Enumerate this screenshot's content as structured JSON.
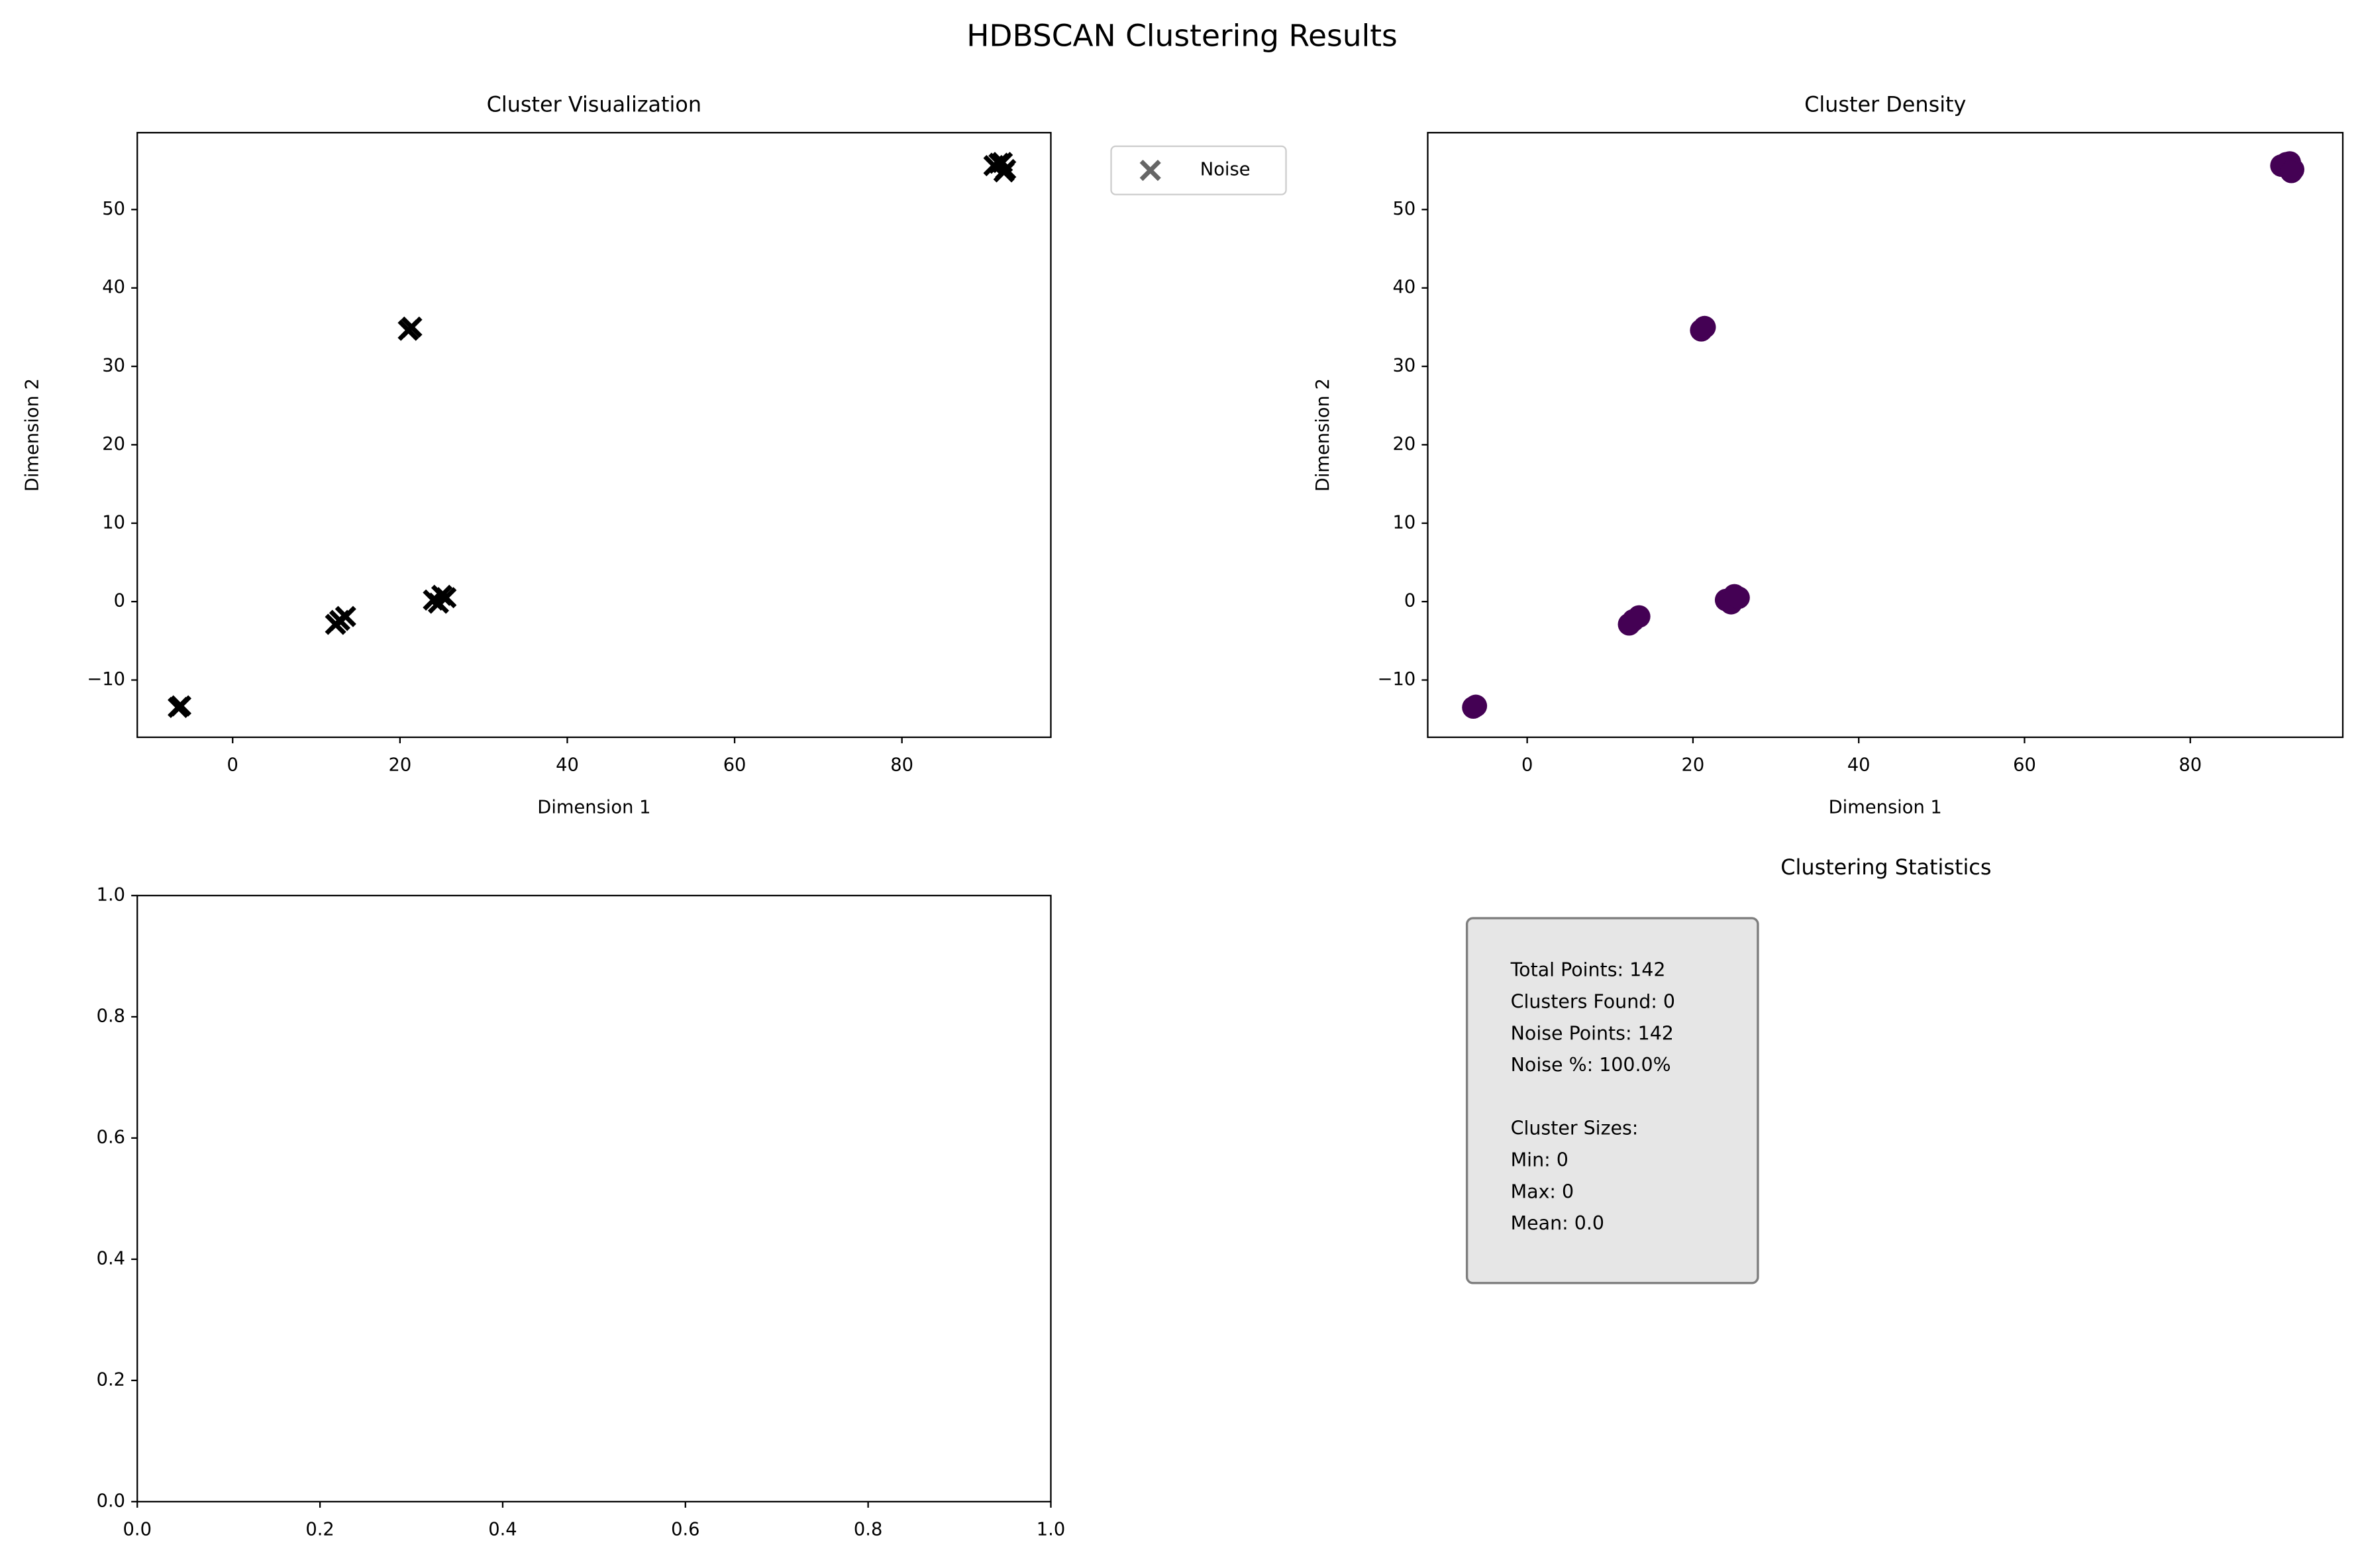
{
  "title": "HDBSCAN Clustering Results",
  "chart_data": [
    {
      "type": "scatter",
      "title": "Cluster Visualization",
      "x_label": "Dimension 1",
      "y_label": "Dimension 2",
      "marker": "x",
      "xlim": [
        -11.4,
        97.8
      ],
      "ylim": [
        -17.3,
        59.8
      ],
      "xticks": [
        0,
        20,
        40,
        60,
        80
      ],
      "yticks": [
        {
          "value": -10,
          "label": "−10"
        },
        0,
        10,
        20,
        30,
        40,
        50
      ],
      "legend": "outside-upper-right",
      "series": [
        {
          "name": "Noise",
          "color": "#000000",
          "x": [
            -6.5,
            -6.2,
            12.3,
            12.8,
            13.5,
            21.0,
            21.4,
            24.0,
            24.6,
            25.0,
            25.5,
            91.0,
            91.6,
            92.0,
            92.4,
            92.2
          ],
          "y": [
            -13.5,
            -13.3,
            -2.9,
            -2.4,
            -1.9,
            34.6,
            35.0,
            0.2,
            -0.2,
            0.8,
            0.5,
            55.6,
            55.9,
            56.0,
            55.1,
            54.8
          ]
        }
      ]
    },
    {
      "type": "scatter",
      "title": "Cluster Density",
      "x_label": "Dimension 1",
      "y_label": "Dimension 2",
      "marker": "o",
      "xlim": [
        -12.0,
        98.4
      ],
      "ylim": [
        -17.3,
        59.8
      ],
      "xticks": [
        0,
        20,
        40,
        60,
        80
      ],
      "yticks": [
        {
          "value": -10,
          "label": "−10"
        },
        0,
        10,
        20,
        30,
        40,
        50
      ],
      "series": [
        {
          "color": "#440154",
          "x": [
            -6.5,
            -6.2,
            12.3,
            12.8,
            13.5,
            21.0,
            21.4,
            24.0,
            24.6,
            25.0,
            25.5,
            91.0,
            91.6,
            92.0,
            92.4,
            92.2
          ],
          "y": [
            -13.5,
            -13.3,
            -2.9,
            -2.4,
            -1.9,
            34.6,
            35.0,
            0.2,
            -0.2,
            0.8,
            0.5,
            55.6,
            55.9,
            56.0,
            55.1,
            54.8
          ]
        }
      ]
    },
    {
      "type": "empty",
      "xlim": [
        0,
        1
      ],
      "ylim": [
        0,
        1
      ],
      "xticks": [
        {
          "value": 0,
          "label": "0.0"
        },
        {
          "value": 0.2,
          "label": "0.2"
        },
        {
          "value": 0.4,
          "label": "0.4"
        },
        {
          "value": 0.6,
          "label": "0.6"
        },
        {
          "value": 0.8,
          "label": "0.8"
        },
        {
          "value": 1,
          "label": "1.0"
        }
      ],
      "yticks": [
        {
          "value": 0,
          "label": "0.0"
        },
        {
          "value": 0.2,
          "label": "0.2"
        },
        {
          "value": 0.4,
          "label": "0.4"
        },
        {
          "value": 0.6,
          "label": "0.6"
        },
        {
          "value": 0.8,
          "label": "0.8"
        },
        {
          "value": 1,
          "label": "1.0"
        }
      ]
    },
    {
      "type": "text",
      "title": "Clustering Statistics",
      "lines": [
        [
          "Total Points: 142",
          "Clusters Found: 0",
          "Noise Points: 142",
          "Noise %: 100.0%"
        ],
        [
          "Cluster Sizes:",
          "Min: 0",
          "Max: 0",
          "Mean: 0.0"
        ]
      ]
    }
  ]
}
